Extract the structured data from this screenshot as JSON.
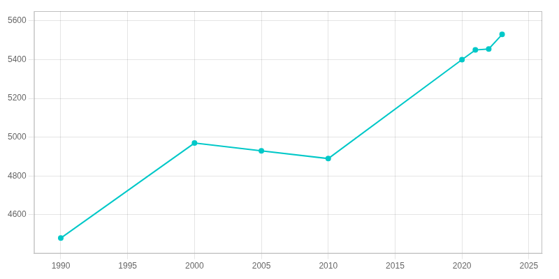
{
  "chart_data": {
    "type": "line",
    "x": [
      1990,
      2000,
      2005,
      2010,
      2020,
      2021,
      2022,
      2023
    ],
    "values": [
      4480,
      4970,
      4930,
      4890,
      5400,
      5450,
      5455,
      5530
    ],
    "color": "#00C8C8",
    "marker": "circle",
    "xlim": [
      1988,
      2026
    ],
    "ylim": [
      4400,
      5650
    ],
    "xticks": [
      1990,
      1995,
      2000,
      2005,
      2010,
      2015,
      2020,
      2025
    ],
    "yticks": [
      4600,
      4800,
      5000,
      5200,
      5400,
      5600
    ],
    "grid": true
  }
}
